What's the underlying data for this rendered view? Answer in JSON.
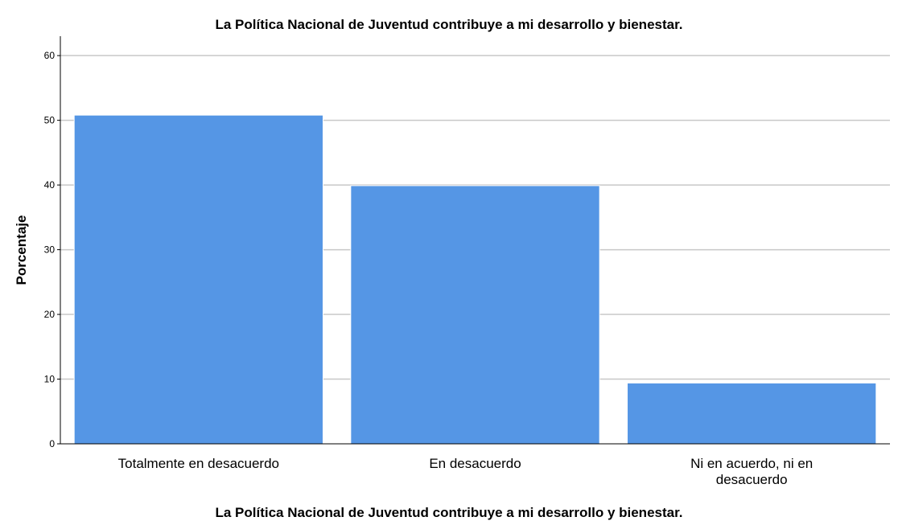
{
  "chart_data": {
    "type": "bar",
    "title": "La Política Nacional de Juventud contribuye a mi desarrollo y bienestar.",
    "xlabel": "La Política Nacional de Juventud contribuye a mi desarrollo y bienestar.",
    "ylabel": "Porcentaje",
    "categories": [
      [
        "Totalmente en desacuerdo"
      ],
      [
        "En desacuerdo"
      ],
      [
        "Ni en acuerdo, ni en",
        "desacuerdo"
      ]
    ],
    "values": [
      50.8,
      39.9,
      9.4
    ],
    "ylim": [
      0,
      63
    ],
    "yticks": [
      0,
      10,
      20,
      30,
      40,
      50,
      60
    ],
    "grid": true,
    "bar_color": "#5596e5"
  }
}
